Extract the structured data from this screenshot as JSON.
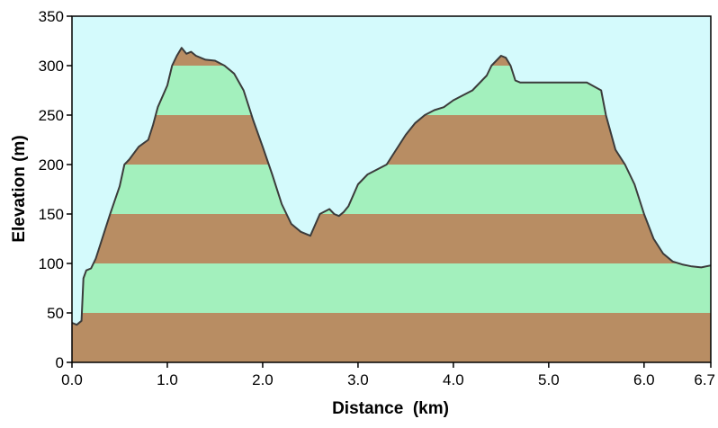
{
  "chart_data": {
    "type": "area",
    "title": "",
    "xlabel": "Distance  (km)",
    "ylabel": "Elevation (m)",
    "xlim": [
      0,
      6.7
    ],
    "ylim": [
      0,
      350
    ],
    "grid": false,
    "x_ticks": [
      "0.0",
      "1.0",
      "2.0",
      "3.0",
      "4.0",
      "5.0",
      "6.0",
      "6.7"
    ],
    "x_tick_values": [
      0,
      1,
      2,
      3,
      4,
      5,
      6,
      6.7
    ],
    "y_ticks": [
      "0",
      "50",
      "100",
      "150",
      "200",
      "250",
      "300",
      "350"
    ],
    "y_tick_values": [
      0,
      50,
      100,
      150,
      200,
      250,
      300,
      350
    ],
    "band_step": 50,
    "colors": {
      "sky": "#d4fafc",
      "band_brown": "#b88d63",
      "band_green": "#a3f0bd",
      "outline": "#3b3b3b",
      "frame": "#000000",
      "text": "#000000"
    },
    "series": [
      {
        "x": [
          0.0,
          0.05,
          0.1,
          0.12,
          0.15,
          0.2,
          0.25,
          0.3,
          0.4,
          0.5,
          0.55,
          0.6,
          0.7,
          0.8,
          0.85,
          0.9,
          1.0,
          1.05,
          1.1,
          1.15,
          1.2,
          1.25,
          1.3,
          1.4,
          1.5,
          1.6,
          1.7,
          1.8,
          1.9,
          2.0,
          2.1,
          2.2,
          2.3,
          2.4,
          2.5,
          2.6,
          2.7,
          2.75,
          2.8,
          2.85,
          2.9,
          3.0,
          3.1,
          3.2,
          3.3,
          3.4,
          3.5,
          3.6,
          3.7,
          3.8,
          3.9,
          4.0,
          4.1,
          4.2,
          4.3,
          4.35,
          4.4,
          4.5,
          4.55,
          4.6,
          4.65,
          4.7,
          4.75,
          5.0,
          5.2,
          5.4,
          5.55,
          5.6,
          5.7,
          5.8,
          5.9,
          6.0,
          6.1,
          6.2,
          6.3,
          6.4,
          6.5,
          6.6,
          6.7
        ],
        "values": [
          40,
          38,
          42,
          85,
          93,
          95,
          105,
          120,
          150,
          178,
          200,
          205,
          218,
          225,
          240,
          258,
          280,
          300,
          310,
          318,
          312,
          314,
          310,
          306,
          305,
          300,
          292,
          275,
          245,
          218,
          190,
          160,
          140,
          132,
          128,
          150,
          155,
          150,
          148,
          152,
          158,
          180,
          190,
          195,
          200,
          215,
          230,
          242,
          250,
          255,
          258,
          265,
          270,
          275,
          285,
          290,
          300,
          310,
          308,
          300,
          285,
          283,
          283,
          283,
          283,
          283,
          275,
          250,
          215,
          200,
          180,
          150,
          125,
          110,
          102,
          99,
          97,
          96,
          98
        ]
      }
    ]
  }
}
